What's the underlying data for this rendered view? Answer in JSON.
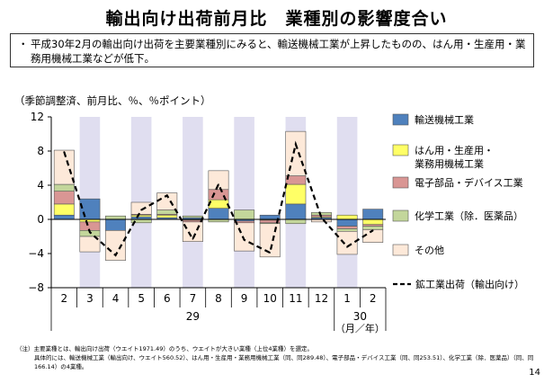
{
  "title": "輸出向け出荷前月比　業種別の影響度合い",
  "summary": {
    "bullet": "・",
    "text": "平成30年2月の輸出向け出荷を主要業種別にみると、輸送機械工業が上昇したものの、はん用・生産用・業務用機械工業などが低下。"
  },
  "unit_note": "（季節調整済、前月比、％、％ポイント）",
  "footnote_lines": [
    "（注）主要業種とは、輸出向け出荷（ウエイト1971.49）のうち、ウエイトが大きい業種（上位4業種）を選定。",
    "具体的には、輸送機械工業（輸出向け、ウエイト560.52）、はん用・生産用・業務用機械工業（同、同289.48）、電子部品・デバイス工業（同、同253.51）、化学工業（除．医薬品）（同、同",
    "166.14）の4業種。"
  ],
  "page_number": "14",
  "colors": {
    "transport": "#4f81bd",
    "machinery": "#ffff66",
    "electronic": "#d99694",
    "chemical": "#c3d69b",
    "other": "#fde9d9",
    "line": "#000000",
    "shade": "#e0def0"
  },
  "chart_data": {
    "type": "bar",
    "stacked": true,
    "categories": [
      "2",
      "3",
      "4",
      "5",
      "6",
      "7",
      "8",
      "9",
      "10",
      "11",
      "12",
      "1",
      "2"
    ],
    "year_labels": [
      {
        "text": "29",
        "from_index": 0,
        "to_index": 10
      },
      {
        "text": "30",
        "from_index": 11,
        "to_index": 12
      }
    ],
    "x_unit_label": "（月／年）",
    "ylim": [
      -8,
      12
    ],
    "yticks": [
      12,
      8,
      4,
      0,
      -4,
      -8
    ],
    "shaded_categories": [
      1,
      3,
      5,
      7,
      9,
      11
    ],
    "series": [
      {
        "name": "輸送機械工業",
        "key": "transport",
        "values": [
          0.5,
          2.4,
          -1.3,
          0.3,
          0.2,
          0.2,
          1.3,
          -0.2,
          0.5,
          1.8,
          0.2,
          -0.8,
          1.2
        ]
      },
      {
        "name": "はん用・生産用・業務用機械工業",
        "key": "machinery",
        "values": [
          1.3,
          -0.3,
          0.0,
          0.2,
          0.3,
          -0.1,
          1.0,
          0.0,
          -0.1,
          2.3,
          0.1,
          0.5,
          -0.6
        ]
      },
      {
        "name": "電子部品・デバイス工業",
        "key": "electronic",
        "values": [
          1.5,
          -1.0,
          0.0,
          0.1,
          0.1,
          -0.2,
          1.2,
          -0.2,
          -0.3,
          1.0,
          0.2,
          -0.3,
          -0.2
        ]
      },
      {
        "name": "化学工業（除．医薬品）",
        "key": "chemical",
        "values": [
          0.8,
          -0.7,
          0.4,
          -0.4,
          0.5,
          0.2,
          -0.3,
          1.1,
          -0.1,
          -0.5,
          0.3,
          -0.3,
          -0.4
        ]
      },
      {
        "name": "その他",
        "key": "other",
        "values": [
          4.0,
          -1.8,
          -3.5,
          1.4,
          2.0,
          -2.3,
          2.2,
          -3.3,
          -3.9,
          5.2,
          -0.3,
          -2.7,
          -1.5
        ]
      }
    ],
    "line": {
      "name": "鉱工業出荷（輸出向け）",
      "values": [
        7.9,
        -1.5,
        -4.2,
        1.1,
        2.8,
        -2.3,
        4.1,
        -2.4,
        -3.9,
        8.8,
        0.2,
        -3.2,
        -1.3
      ]
    },
    "legend_position": "right"
  }
}
